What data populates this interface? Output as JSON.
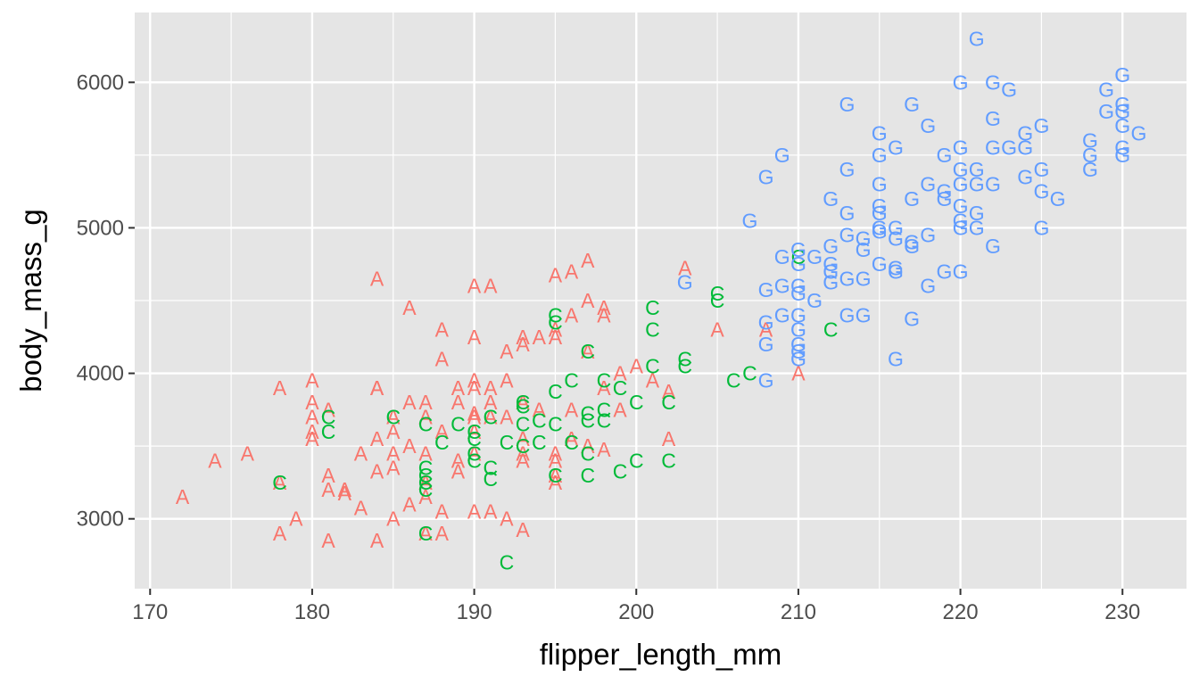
{
  "chart_data": {
    "type": "scatter",
    "title": "",
    "xlabel": "flipper_length_mm",
    "ylabel": "body_mass_g",
    "xlim": [
      169.05,
      233.95
    ],
    "ylim": [
      2520,
      6480
    ],
    "x_ticks": [
      170,
      180,
      190,
      200,
      210,
      220,
      230
    ],
    "y_ticks": [
      3000,
      4000,
      5000,
      6000
    ],
    "grid": true,
    "legend": "none",
    "panel_background": "#e5e5e5",
    "series": [
      {
        "label": "A",
        "color": "#f8766d",
        "points": [
          [
            172,
            3150
          ],
          [
            174,
            3400
          ],
          [
            176,
            3450
          ],
          [
            178,
            3250
          ],
          [
            178,
            3900
          ],
          [
            178,
            2900
          ],
          [
            179,
            3000
          ],
          [
            180,
            3950
          ],
          [
            180,
            3800
          ],
          [
            180,
            3700
          ],
          [
            180,
            3600
          ],
          [
            180,
            3550
          ],
          [
            181,
            3300
          ],
          [
            181,
            3200
          ],
          [
            181,
            3750
          ],
          [
            181,
            2850
          ],
          [
            182,
            3200
          ],
          [
            182,
            3175
          ],
          [
            183,
            3450
          ],
          [
            183,
            3075
          ],
          [
            184,
            4650
          ],
          [
            184,
            3900
          ],
          [
            184,
            3900
          ],
          [
            184,
            3550
          ],
          [
            184,
            3325
          ],
          [
            184,
            2850
          ],
          [
            185,
            3700
          ],
          [
            185,
            3600
          ],
          [
            185,
            3450
          ],
          [
            185,
            3350
          ],
          [
            185,
            3000
          ],
          [
            186,
            4450
          ],
          [
            186,
            3800
          ],
          [
            186,
            3500
          ],
          [
            186,
            3100
          ],
          [
            187,
            3800
          ],
          [
            187,
            3700
          ],
          [
            187,
            3450
          ],
          [
            187,
            3250
          ],
          [
            187,
            3150
          ],
          [
            187,
            2900
          ],
          [
            188,
            4300
          ],
          [
            188,
            4100
          ],
          [
            188,
            3600
          ],
          [
            188,
            3050
          ],
          [
            188,
            2900
          ],
          [
            189,
            3900
          ],
          [
            189,
            3800
          ],
          [
            189,
            3400
          ],
          [
            189,
            3325
          ],
          [
            190,
            4600
          ],
          [
            190,
            4250
          ],
          [
            190,
            3950
          ],
          [
            190,
            3900
          ],
          [
            190,
            3700
          ],
          [
            190,
            3725
          ],
          [
            190,
            3600
          ],
          [
            190,
            3450
          ],
          [
            190,
            3050
          ],
          [
            191,
            4600
          ],
          [
            191,
            3900
          ],
          [
            191,
            3800
          ],
          [
            191,
            3700
          ],
          [
            191,
            3050
          ],
          [
            192,
            4150
          ],
          [
            192,
            3950
          ],
          [
            192,
            3700
          ],
          [
            192,
            3000
          ],
          [
            193,
            4250
          ],
          [
            193,
            4200
          ],
          [
            193,
            3800
          ],
          [
            193,
            3550
          ],
          [
            193,
            3450
          ],
          [
            193,
            3400
          ],
          [
            193,
            2925
          ],
          [
            194,
            4250
          ],
          [
            194,
            3750
          ],
          [
            195,
            4675
          ],
          [
            195,
            4300
          ],
          [
            195,
            4250
          ],
          [
            195,
            3450
          ],
          [
            195,
            3400
          ],
          [
            195,
            3250
          ],
          [
            195,
            3300
          ],
          [
            196,
            4700
          ],
          [
            196,
            4400
          ],
          [
            196,
            3750
          ],
          [
            196,
            3550
          ],
          [
            197,
            4775
          ],
          [
            197,
            4500
          ],
          [
            197,
            4150
          ],
          [
            197,
            3500
          ],
          [
            198,
            4450
          ],
          [
            198,
            4400
          ],
          [
            198,
            3900
          ],
          [
            198,
            3475
          ],
          [
            199,
            4000
          ],
          [
            199,
            3750
          ],
          [
            200,
            4050
          ],
          [
            201,
            3950
          ],
          [
            202,
            3875
          ],
          [
            202,
            3550
          ],
          [
            203,
            4725
          ],
          [
            205,
            4300
          ],
          [
            208,
            4300
          ],
          [
            210,
            4000
          ]
        ]
      },
      {
        "label": "C",
        "color": "#00ba38",
        "points": [
          [
            178,
            3250
          ],
          [
            181,
            3700
          ],
          [
            181,
            3600
          ],
          [
            185,
            3700
          ],
          [
            187,
            3650
          ],
          [
            187,
            3350
          ],
          [
            187,
            3300
          ],
          [
            187,
            3250
          ],
          [
            187,
            3200
          ],
          [
            187,
            2900
          ],
          [
            188,
            3525
          ],
          [
            189,
            3650
          ],
          [
            190,
            3600
          ],
          [
            190,
            3550
          ],
          [
            190,
            3450
          ],
          [
            190,
            3400
          ],
          [
            191,
            3700
          ],
          [
            191,
            3350
          ],
          [
            191,
            3275
          ],
          [
            192,
            3525
          ],
          [
            192,
            2700
          ],
          [
            193,
            3800
          ],
          [
            193,
            3775
          ],
          [
            193,
            3650
          ],
          [
            193,
            3500
          ],
          [
            194,
            3525
          ],
          [
            194,
            3675
          ],
          [
            195,
            4400
          ],
          [
            195,
            4350
          ],
          [
            195,
            3875
          ],
          [
            195,
            3650
          ],
          [
            195,
            3300
          ],
          [
            196,
            3950
          ],
          [
            196,
            3525
          ],
          [
            197,
            4150
          ],
          [
            197,
            3725
          ],
          [
            197,
            3675
          ],
          [
            197,
            3450
          ],
          [
            197,
            3300
          ],
          [
            198,
            3950
          ],
          [
            198,
            3750
          ],
          [
            198,
            3675
          ],
          [
            199,
            3900
          ],
          [
            199,
            3325
          ],
          [
            200,
            3800
          ],
          [
            200,
            3400
          ],
          [
            201,
            4450
          ],
          [
            201,
            4300
          ],
          [
            201,
            4050
          ],
          [
            202,
            3800
          ],
          [
            202,
            3400
          ],
          [
            203,
            4100
          ],
          [
            203,
            4050
          ],
          [
            205,
            4550
          ],
          [
            205,
            4500
          ],
          [
            206,
            3950
          ],
          [
            207,
            4000
          ],
          [
            210,
            4800
          ],
          [
            212,
            4300
          ]
        ]
      },
      {
        "label": "G",
        "color": "#619cff",
        "points": [
          [
            203,
            4625
          ],
          [
            207,
            5050
          ],
          [
            208,
            5350
          ],
          [
            208,
            4575
          ],
          [
            208,
            4350
          ],
          [
            208,
            4200
          ],
          [
            208,
            3950
          ],
          [
            209,
            5500
          ],
          [
            209,
            4800
          ],
          [
            209,
            4600
          ],
          [
            209,
            4400
          ],
          [
            210,
            4850
          ],
          [
            210,
            4750
          ],
          [
            210,
            4600
          ],
          [
            210,
            4550
          ],
          [
            210,
            4400
          ],
          [
            210,
            4300
          ],
          [
            210,
            4200
          ],
          [
            210,
            4150
          ],
          [
            210,
            4100
          ],
          [
            211,
            4800
          ],
          [
            211,
            4500
          ],
          [
            212,
            5200
          ],
          [
            212,
            4875
          ],
          [
            212,
            4750
          ],
          [
            212,
            4700
          ],
          [
            212,
            4625
          ],
          [
            213,
            5850
          ],
          [
            213,
            5400
          ],
          [
            213,
            5100
          ],
          [
            213,
            4950
          ],
          [
            213,
            4650
          ],
          [
            213,
            4400
          ],
          [
            214,
            4925
          ],
          [
            214,
            4650
          ],
          [
            214,
            4850
          ],
          [
            214,
            4400
          ],
          [
            215,
            5650
          ],
          [
            215,
            5500
          ],
          [
            215,
            5300
          ],
          [
            215,
            5150
          ],
          [
            215,
            5100
          ],
          [
            215,
            5000
          ],
          [
            215,
            4975
          ],
          [
            215,
            4750
          ],
          [
            216,
            5550
          ],
          [
            216,
            5000
          ],
          [
            216,
            4925
          ],
          [
            216,
            4725
          ],
          [
            216,
            4700
          ],
          [
            216,
            4100
          ],
          [
            217,
            5850
          ],
          [
            217,
            5200
          ],
          [
            217,
            4875
          ],
          [
            217,
            4375
          ],
          [
            217,
            4900
          ],
          [
            218,
            5700
          ],
          [
            218,
            5300
          ],
          [
            218,
            4950
          ],
          [
            218,
            4600
          ],
          [
            219,
            5500
          ],
          [
            219,
            5250
          ],
          [
            219,
            5200
          ],
          [
            219,
            4700
          ],
          [
            220,
            6000
          ],
          [
            220,
            5550
          ],
          [
            220,
            5400
          ],
          [
            220,
            5300
          ],
          [
            220,
            5150
          ],
          [
            220,
            5050
          ],
          [
            220,
            5000
          ],
          [
            220,
            4700
          ],
          [
            221,
            6300
          ],
          [
            221,
            5400
          ],
          [
            221,
            5300
          ],
          [
            221,
            5100
          ],
          [
            221,
            5000
          ],
          [
            222,
            6000
          ],
          [
            222,
            5750
          ],
          [
            222,
            5550
          ],
          [
            222,
            5300
          ],
          [
            222,
            4875
          ],
          [
            223,
            5950
          ],
          [
            223,
            5550
          ],
          [
            224,
            5650
          ],
          [
            224,
            5550
          ],
          [
            224,
            5350
          ],
          [
            225,
            5700
          ],
          [
            225,
            5400
          ],
          [
            225,
            5250
          ],
          [
            225,
            5000
          ],
          [
            226,
            5200
          ],
          [
            228,
            5600
          ],
          [
            228,
            5500
          ],
          [
            228,
            5400
          ],
          [
            229,
            5950
          ],
          [
            229,
            5800
          ],
          [
            230,
            6050
          ],
          [
            230,
            5850
          ],
          [
            230,
            5800
          ],
          [
            230,
            5700
          ],
          [
            230,
            5550
          ],
          [
            230,
            5500
          ],
          [
            231,
            5650
          ]
        ]
      }
    ]
  }
}
